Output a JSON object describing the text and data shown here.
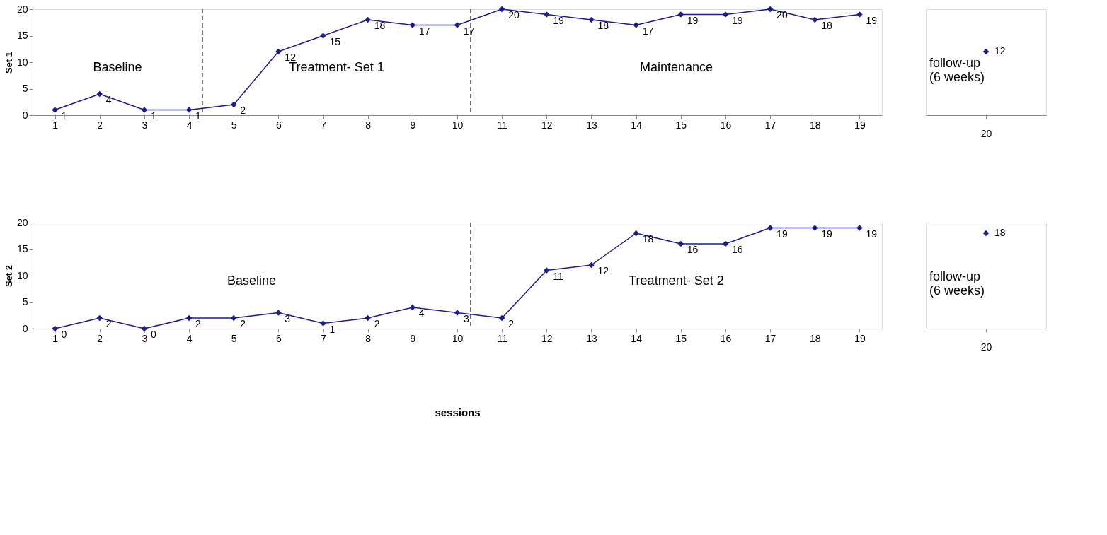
{
  "chart_data": [
    {
      "type": "line",
      "ylabel": "Set 1",
      "x": [
        1,
        2,
        3,
        4,
        5,
        6,
        7,
        8,
        9,
        10,
        11,
        12,
        13,
        14,
        15,
        16,
        17,
        18,
        19
      ],
      "xlim": [
        0.5,
        19.5
      ],
      "xticks": [
        1,
        2,
        3,
        4,
        5,
        6,
        7,
        8,
        9,
        10,
        11,
        12,
        13,
        14,
        15,
        16,
        17,
        18,
        19
      ],
      "ylim": [
        0,
        20
      ],
      "yticks": [
        0,
        5,
        10,
        15,
        20
      ],
      "grid": false,
      "marker": "diamond",
      "line_style": "solid",
      "data_labels": true,
      "series": [
        {
          "color": "#1c1c8c",
          "values": [
            1,
            4,
            1,
            1,
            2,
            12,
            15,
            18,
            17,
            17,
            20,
            19,
            18,
            17,
            19,
            19,
            20,
            18,
            19
          ]
        }
      ],
      "ref_lines": [
        {
          "axis": "x",
          "value": 4.3,
          "color": "#000000",
          "line_style": "dashed"
        },
        {
          "axis": "x",
          "value": 10.3,
          "color": "#000000",
          "line_style": "dashed"
        }
      ],
      "annotations": [
        "Baseline",
        "Treatment- Set 1",
        "Maintenance"
      ]
    },
    {
      "type": "scatter",
      "categories": [
        "20"
      ],
      "ylim": [
        0,
        20
      ],
      "tick_labels": "x",
      "marker": "diamond",
      "data_labels": true,
      "series": [
        {
          "color": "#1c1c8c",
          "values": [
            12
          ]
        }
      ],
      "annotations": [
        "follow-up\n(6 weeks)"
      ]
    },
    {
      "type": "line",
      "ylabel": "Set 2",
      "xlabel": "sessions",
      "x": [
        1,
        2,
        3,
        4,
        5,
        6,
        7,
        8,
        9,
        10,
        11,
        12,
        13,
        14,
        15,
        16,
        17,
        18,
        19
      ],
      "xlim": [
        0.5,
        19.5
      ],
      "xticks": [
        1,
        2,
        3,
        4,
        5,
        6,
        7,
        8,
        9,
        10,
        11,
        12,
        13,
        14,
        15,
        16,
        17,
        18,
        19
      ],
      "ylim": [
        0,
        20
      ],
      "yticks": [
        0,
        5,
        10,
        15,
        20
      ],
      "grid": false,
      "marker": "diamond",
      "line_style": "solid",
      "data_labels": true,
      "series": [
        {
          "color": "#1c1c8c",
          "values": [
            0,
            2,
            0,
            2,
            2,
            3,
            1,
            2,
            4,
            3,
            2,
            11,
            12,
            18,
            16,
            16,
            19,
            19,
            19
          ]
        }
      ],
      "ref_lines": [
        {
          "axis": "x",
          "value": 10.3,
          "color": "#000000",
          "line_style": "dashed"
        }
      ],
      "annotations": [
        "Baseline",
        "Treatment- Set 2"
      ]
    },
    {
      "type": "scatter",
      "categories": [
        "20"
      ],
      "ylim": [
        0,
        20
      ],
      "tick_labels": "x",
      "marker": "diamond",
      "data_labels": true,
      "series": [
        {
          "color": "#1c1c8c",
          "values": [
            18
          ]
        }
      ],
      "annotations": [
        "follow-up\n(6 weeks)"
      ]
    }
  ]
}
